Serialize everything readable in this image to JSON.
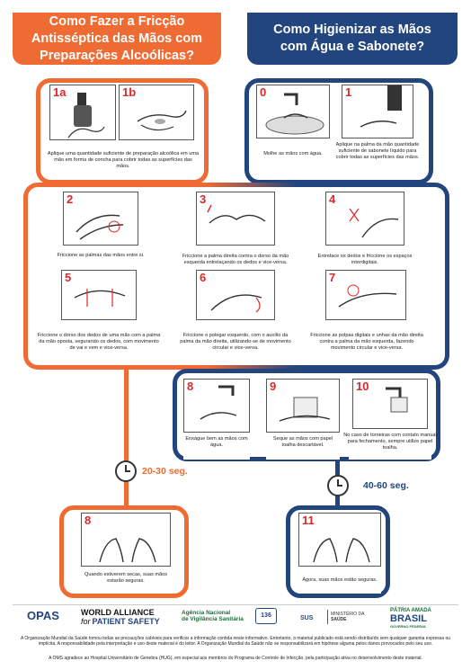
{
  "headers": {
    "left": "Como Fazer a Fricção Antisséptica das Mãos com Preparações Alcoólicas?",
    "right": "Como Higienizar as Mãos com Água e Sabonete?"
  },
  "steps": {
    "s1a": {
      "num": "1a",
      "caption": ""
    },
    "s1b": {
      "num": "1b",
      "caption": "Aplique uma quantidade suficiente de preparação alcoólica em uma mão em forma de concha para cobrir todas as superfícies das mãos."
    },
    "s0": {
      "num": "0",
      "caption": "Molhe as mãos com água."
    },
    "s1": {
      "num": "1",
      "caption": "Aplique na palma da mão quantidade suficiente de sabonete líquido para cobrir todas as superfícies das mãos."
    },
    "s2": {
      "num": "2",
      "caption": "Friccione as palmas das mãos entre si."
    },
    "s3": {
      "num": "3",
      "caption": "Friccione a palma direita contra o dorso da mão esquerda entrelaçando os dedos e vice-versa."
    },
    "s4": {
      "num": "4",
      "caption": "Entrelace os dedos e friccione os espaços interdigitais."
    },
    "s5": {
      "num": "5",
      "caption": "Friccione o dorso dos dedos de uma mão com a palma da mão oposta, segurando os dedos, com movimento de vai e vem e vice-versa."
    },
    "s6": {
      "num": "6",
      "caption": "Friccione o polegar esquerdo, com o auxílio da palma da mão direita, utilizando-se de movimento circular e vice-versa."
    },
    "s7": {
      "num": "7",
      "caption": "Friccione as polpas digitais e unhas da mão direita contra a palma da mão esquerda, fazendo movimento circular e vice-versa."
    },
    "s8w": {
      "num": "8",
      "caption": "Enxágue bem as mãos com água."
    },
    "s9": {
      "num": "9",
      "caption": "Seque as mãos com papel toalha descartável."
    },
    "s10": {
      "num": "10",
      "caption": "No caso de torneiras com contato manual para fechamento, sempre utilize papel toalha."
    },
    "s8a": {
      "num": "8",
      "caption": "Quando estiverem secas, suas mãos estarão seguras."
    },
    "s11": {
      "num": "11",
      "caption": "Agora, suas mãos estão seguras."
    }
  },
  "timers": {
    "left": "20-30 seg.",
    "right": "40-60 seg."
  },
  "footer": {
    "opas": "OPAS",
    "world_alliance_line1": "WORLD ALLIANCE",
    "world_alliance_line2": "PATIENT SAFETY",
    "world_alliance_for": "for",
    "anvisa_line1": "Agência Nacional",
    "anvisa_line2": "de Vigilância Sanitária",
    "disque": "136",
    "sus": "SUS",
    "ministerio_line1": "MINISTÉRIO DA",
    "ministerio_line2": "SAÚDE",
    "patria_line1": "PÁTRIA AMADA",
    "patria_line2": "BRASIL",
    "patria_line3": "GOVERNO FEDERAL",
    "disclaimer": "A Organização Mundial da Saúde tomou todas as precauções cabíveis para verificar a informação contida neste informativo. Entretanto, o material publicado está sendo distribuído sem qualquer garantia expressa ou implícita. A responsabilidade pela interpretação e uso deste material é do leitor. A Organização Mundial da Saúde não se responsabilizará em hipótese alguma pelos danos provocados pelo seu uso.",
    "thanks": "A OMS agradece ao Hospital Universitário de Genebra (HUG), em especial aos membros do Programa de Controle de Infecção, pela participação ativa no desenvolvimento deste material."
  },
  "colors": {
    "orange": "#ee6b33",
    "blue": "#22457e",
    "red": "#e0262a"
  }
}
